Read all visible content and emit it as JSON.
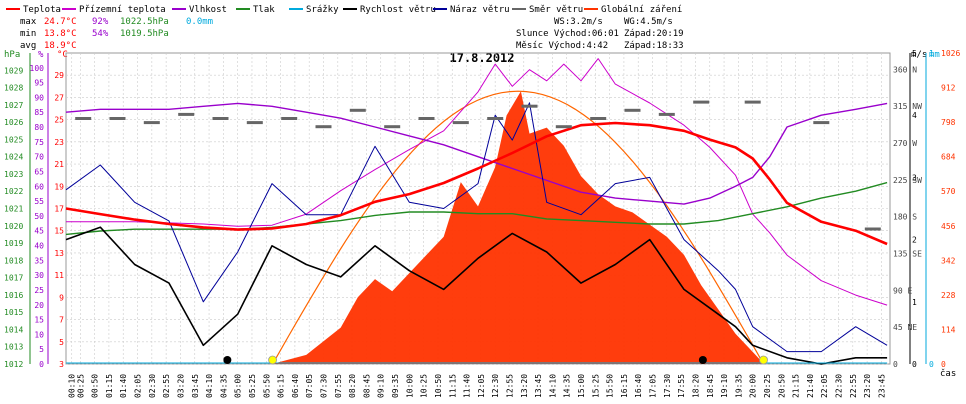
{
  "legend": [
    {
      "label": "Teplota",
      "color": "#ff0000"
    },
    {
      "label": "Přízemní teplota",
      "color": "#cc00cc"
    },
    {
      "label": "Vlhkost",
      "color": "#9900cc"
    },
    {
      "label": "Tlak",
      "color": "#228b22"
    },
    {
      "label": "Srážky",
      "color": "#00aadd"
    },
    {
      "label": "Rychlost větru",
      "color": "#000000"
    },
    {
      "label": "Náraz větru",
      "color": "#000099"
    },
    {
      "label": "Směr větru",
      "color": "#666666"
    },
    {
      "label": "Globální záření",
      "color": "#ff3300"
    }
  ],
  "stats": {
    "max_label": "max",
    "max_temp": "24.7°C",
    "max_hum": "92%",
    "max_press": "1022.5hPa",
    "max_rain": "0.0mm",
    "min_label": "min",
    "min_temp": "13.8°C",
    "min_hum": "54%",
    "min_press": "1019.5hPa",
    "avg_label": "avg",
    "avg_temp": "18.9°C"
  },
  "wind_info": {
    "ws": "WS:3.2m/s",
    "wg": "WG:4.5m/s",
    "sun": "Slunce Východ:06:01",
    "sun_set": "Západ:20:19",
    "moon": "Měsíc  Východ:4:42",
    "moon_set": "Západ:18:33"
  },
  "axes_units": {
    "hpa": "hPa",
    "pct": "%",
    "deg": "°C",
    "ms": "m/s",
    "mm": "mm",
    "wm2": "W/m²",
    "cas": "čas"
  },
  "colors": {
    "temp": "#ff0000",
    "ground": "#cc00cc",
    "hum": "#9900cc",
    "press": "#228b22",
    "rain": "#00aadd",
    "wind": "#000000",
    "gust": "#000099",
    "dir": "#666666",
    "solar": "#ff3300",
    "solarCurve": "#ff6600"
  },
  "chart_data": {
    "type": "line",
    "title": "17.8.2012",
    "x_ticks": [
      "00:10",
      "00:25",
      "00:50",
      "01:15",
      "01:40",
      "02:05",
      "02:30",
      "02:55",
      "03:20",
      "03:45",
      "04:10",
      "04:35",
      "05:00",
      "05:25",
      "05:50",
      "06:15",
      "06:40",
      "07:05",
      "07:30",
      "07:55",
      "08:20",
      "08:45",
      "09:10",
      "09:35",
      "10:00",
      "10:25",
      "10:50",
      "11:15",
      "11:40",
      "12:05",
      "12:30",
      "12:55",
      "13:20",
      "13:45",
      "14:10",
      "14:35",
      "15:00",
      "15:25",
      "15:50",
      "16:15",
      "16:40",
      "17:05",
      "17:30",
      "17:55",
      "18:20",
      "18:45",
      "19:10",
      "19:35",
      "20:00",
      "20:25",
      "20:50",
      "21:15",
      "21:40",
      "22:05",
      "22:30",
      "22:55",
      "23:20",
      "23:45"
    ],
    "axes": {
      "pressure_hpa": {
        "ticks": [
          "1012",
          "1013",
          "1014",
          "1015",
          "1016",
          "1017",
          "1018",
          "1019",
          "1020",
          "1021",
          "1022",
          "1023",
          "1024",
          "1025",
          "1026",
          "1027",
          "1028",
          "1029"
        ],
        "range": [
          1012,
          1030
        ]
      },
      "humidity_pct": {
        "ticks": [
          "0",
          "5",
          "10",
          "15",
          "20",
          "25",
          "30",
          "35",
          "40",
          "45",
          "50",
          "55",
          "60",
          "65",
          "70",
          "75",
          "80",
          "85",
          "90",
          "95",
          "100"
        ],
        "range": [
          0,
          105
        ]
      },
      "temperature_c": {
        "ticks": [
          "3",
          "5",
          "7",
          "9",
          "11",
          "13",
          "15",
          "17",
          "19",
          "21",
          "23",
          "25",
          "27",
          "29"
        ],
        "range": [
          3,
          31
        ]
      },
      "wind_dir": {
        "ticks": [
          "0",
          "45 NE",
          "90 E",
          "135 SE",
          "180 S",
          "225 SW",
          "270 W",
          "315 NW",
          "360 N"
        ],
        "range": [
          0,
          380
        ]
      },
      "wind_ms": {
        "ticks": [
          "0",
          "1",
          "2",
          "3",
          "4",
          "5"
        ],
        "range": [
          0,
          5
        ]
      },
      "rain_mm": {
        "ticks": [
          "0",
          "1"
        ],
        "range": [
          0,
          1
        ]
      },
      "solar_wm2": {
        "ticks": [
          "0",
          "114",
          "228",
          "342",
          "456",
          "570",
          "684",
          "798",
          "912",
          "1026"
        ],
        "range": [
          0,
          1026
        ]
      }
    },
    "series": [
      {
        "name": "Teplota",
        "unit": "°C",
        "x": [
          "00:00",
          "01:00",
          "02:00",
          "03:00",
          "04:00",
          "05:00",
          "06:00",
          "07:00",
          "08:00",
          "09:00",
          "10:00",
          "11:00",
          "12:00",
          "13:00",
          "14:00",
          "15:00",
          "16:00",
          "17:00",
          "18:00",
          "18:45",
          "19:30",
          "20:00",
          "20:30",
          "21:00",
          "22:00",
          "23:00",
          "23:55"
        ],
        "values": [
          17.0,
          16.5,
          16.0,
          15.6,
          15.3,
          15.1,
          15.2,
          15.6,
          16.4,
          17.6,
          18.3,
          19.3,
          20.6,
          22.0,
          23.5,
          24.5,
          24.7,
          24.5,
          24.0,
          23.2,
          22.5,
          21.5,
          19.6,
          17.5,
          15.8,
          15.0,
          13.8
        ]
      },
      {
        "name": "Přízemní teplota",
        "unit": "°C",
        "x": [
          "00:00",
          "02:00",
          "04:00",
          "05:00",
          "06:00",
          "07:00",
          "08:00",
          "09:00",
          "10:00",
          "11:00",
          "12:00",
          "12:30",
          "13:00",
          "13:30",
          "14:00",
          "14:30",
          "15:00",
          "15:30",
          "16:00",
          "17:00",
          "18:00",
          "18:45",
          "19:30",
          "20:00",
          "20:30",
          "21:00",
          "22:00",
          "23:00",
          "23:55"
        ],
        "values": [
          15.8,
          15.8,
          15.6,
          15.4,
          15.5,
          16.5,
          18.6,
          20.5,
          22.3,
          24.0,
          27.5,
          30.0,
          28.0,
          29.5,
          28.5,
          30.0,
          28.5,
          30.5,
          28.2,
          26.5,
          24.5,
          22.5,
          20.0,
          16.5,
          14.8,
          12.8,
          10.5,
          9.2,
          8.3
        ]
      },
      {
        "name": "Vlhkost",
        "unit": "%",
        "x": [
          "00:00",
          "01:00",
          "02:00",
          "03:00",
          "04:00",
          "05:00",
          "06:00",
          "07:00",
          "08:00",
          "09:00",
          "10:00",
          "11:00",
          "12:00",
          "13:00",
          "14:00",
          "15:00",
          "16:00",
          "17:00",
          "18:00",
          "18:45",
          "19:30",
          "20:00",
          "20:30",
          "21:00",
          "22:00",
          "23:00",
          "23:55"
        ],
        "values": [
          85,
          86,
          86,
          86,
          87,
          88,
          87,
          85,
          83,
          80,
          77,
          74,
          70,
          66,
          62,
          58,
          56,
          55,
          54,
          56,
          60,
          63,
          70,
          80,
          84,
          86,
          88
        ]
      },
      {
        "name": "Tlak",
        "unit": "hPa",
        "x": [
          "00:00",
          "01:00",
          "02:00",
          "03:00",
          "04:00",
          "05:00",
          "06:00",
          "07:00",
          "08:00",
          "09:00",
          "10:00",
          "11:00",
          "12:00",
          "13:00",
          "14:00",
          "15:00",
          "16:00",
          "17:00",
          "18:00",
          "19:00",
          "20:00",
          "21:00",
          "22:00",
          "23:00",
          "23:55"
        ],
        "values": [
          1019.5,
          1019.7,
          1019.8,
          1019.8,
          1019.8,
          1019.8,
          1019.9,
          1020.1,
          1020.3,
          1020.6,
          1020.8,
          1020.8,
          1020.7,
          1020.7,
          1020.4,
          1020.3,
          1020.2,
          1020.1,
          1020.1,
          1020.3,
          1020.7,
          1021.1,
          1021.6,
          1022.0,
          1022.5
        ]
      },
      {
        "name": "Globální záření",
        "unit": "W/m²",
        "x": [
          "06:00",
          "07:00",
          "08:00",
          "08:30",
          "09:00",
          "09:30",
          "10:00",
          "10:30",
          "11:00",
          "11:30",
          "12:00",
          "12:30",
          "12:50",
          "13:15",
          "13:30",
          "14:00",
          "14:30",
          "15:00",
          "15:30",
          "16:00",
          "16:30",
          "17:00",
          "17:30",
          "18:00",
          "18:30",
          "19:00",
          "19:30",
          "20:00",
          "20:20"
        ],
        "values": [
          0,
          30,
          120,
          220,
          280,
          240,
          300,
          360,
          420,
          600,
          520,
          650,
          820,
          900,
          760,
          780,
          720,
          620,
          560,
          520,
          500,
          460,
          420,
          360,
          260,
          180,
          100,
          40,
          0
        ]
      },
      {
        "name": "Rychlost větru",
        "unit": "m/s",
        "x": [
          "00:00",
          "01:00",
          "02:00",
          "03:00",
          "04:00",
          "05:00",
          "06:00",
          "07:00",
          "08:00",
          "09:00",
          "10:00",
          "11:00",
          "12:00",
          "13:00",
          "14:00",
          "15:00",
          "16:00",
          "17:00",
          "18:00",
          "19:00",
          "19:30",
          "20:00",
          "21:00",
          "22:00",
          "23:00",
          "23:55"
        ],
        "values": [
          2.0,
          2.2,
          1.6,
          1.3,
          0.3,
          0.8,
          1.9,
          1.6,
          1.4,
          1.9,
          1.5,
          1.2,
          1.7,
          2.1,
          1.8,
          1.3,
          1.6,
          2.0,
          1.2,
          0.8,
          0.6,
          0.3,
          0.1,
          0.0,
          0.1,
          0.1
        ]
      },
      {
        "name": "Náraz větru",
        "unit": "m/s",
        "x": [
          "00:00",
          "01:00",
          "02:00",
          "03:00",
          "04:00",
          "05:00",
          "06:00",
          "07:00",
          "08:00",
          "09:00",
          "10:00",
          "11:00",
          "12:00",
          "12:30",
          "13:00",
          "13:30",
          "14:00",
          "15:00",
          "16:00",
          "17:00",
          "18:00",
          "19:00",
          "19:30",
          "20:00",
          "21:00",
          "22:00",
          "23:00",
          "23:55"
        ],
        "values": [
          2.8,
          3.2,
          2.6,
          2.3,
          1.0,
          1.8,
          2.9,
          2.4,
          2.4,
          3.5,
          2.6,
          2.5,
          2.9,
          4.0,
          3.6,
          4.2,
          2.6,
          2.4,
          2.9,
          3.0,
          2.0,
          1.5,
          1.2,
          0.6,
          0.2,
          0.2,
          0.6,
          0.3
        ]
      },
      {
        "name": "Směr větru",
        "unit": "°",
        "x": [
          "00:30",
          "01:30",
          "02:30",
          "03:30",
          "04:30",
          "05:30",
          "06:30",
          "07:30",
          "08:30",
          "09:30",
          "10:30",
          "11:30",
          "12:30",
          "13:30",
          "14:30",
          "15:30",
          "16:30",
          "17:30",
          "18:30",
          "20:00",
          "22:00",
          "23:30"
        ],
        "values": [
          300,
          300,
          295,
          305,
          300,
          295,
          300,
          290,
          310,
          290,
          300,
          295,
          300,
          315,
          290,
          300,
          310,
          305,
          320,
          320,
          295,
          165
        ]
      },
      {
        "name": "Srážky",
        "unit": "mm",
        "x": [
          "00:00",
          "23:55"
        ],
        "values": [
          0,
          0
        ]
      }
    ],
    "sun_markers": {
      "sunrise": "06:01",
      "sunset": "20:19"
    },
    "moon_markers": {
      "moonrise": "04:42",
      "moonset": "18:33"
    }
  }
}
